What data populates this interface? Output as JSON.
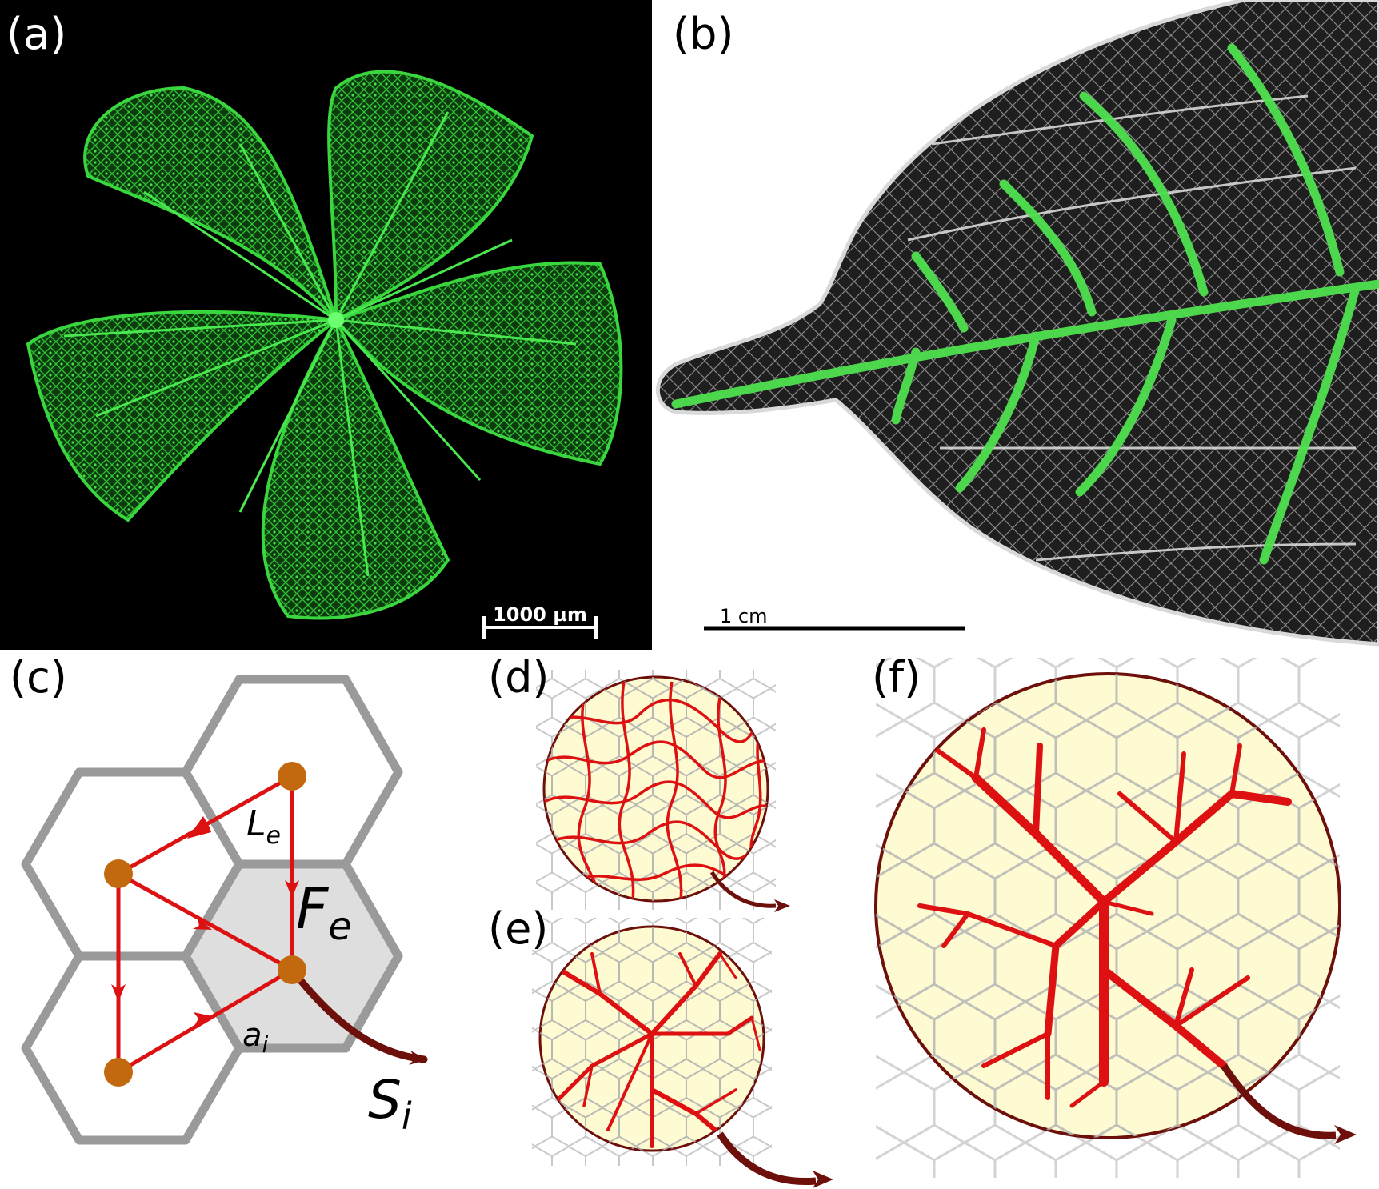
{
  "panels": {
    "a": {
      "label": "(a)",
      "scale_bar": "1000 µm"
    },
    "b": {
      "label": "(b)",
      "scale_bar": "1 cm"
    },
    "c": {
      "label": "(c)",
      "edge_length": "L",
      "edge_length_sub": "e",
      "edge_flow": "F",
      "edge_flow_sub": "e",
      "area": "a",
      "area_sub": "i",
      "sink": "S",
      "sink_sub": "i"
    },
    "d": {
      "label": "(d)"
    },
    "e": {
      "label": "(e)"
    },
    "f": {
      "label": "(f)"
    }
  },
  "colors": {
    "vessel_green": "#35d63a",
    "leaf_dark": "#1c1c1c",
    "network_red": "#dd1111",
    "outflow_dark_red": "#6d0f0a",
    "disk_fill": "#fefbd3",
    "hex_grey": "#9a9a9a",
    "node_orange": "#c2690f",
    "shaded_cell": "#dedede"
  }
}
